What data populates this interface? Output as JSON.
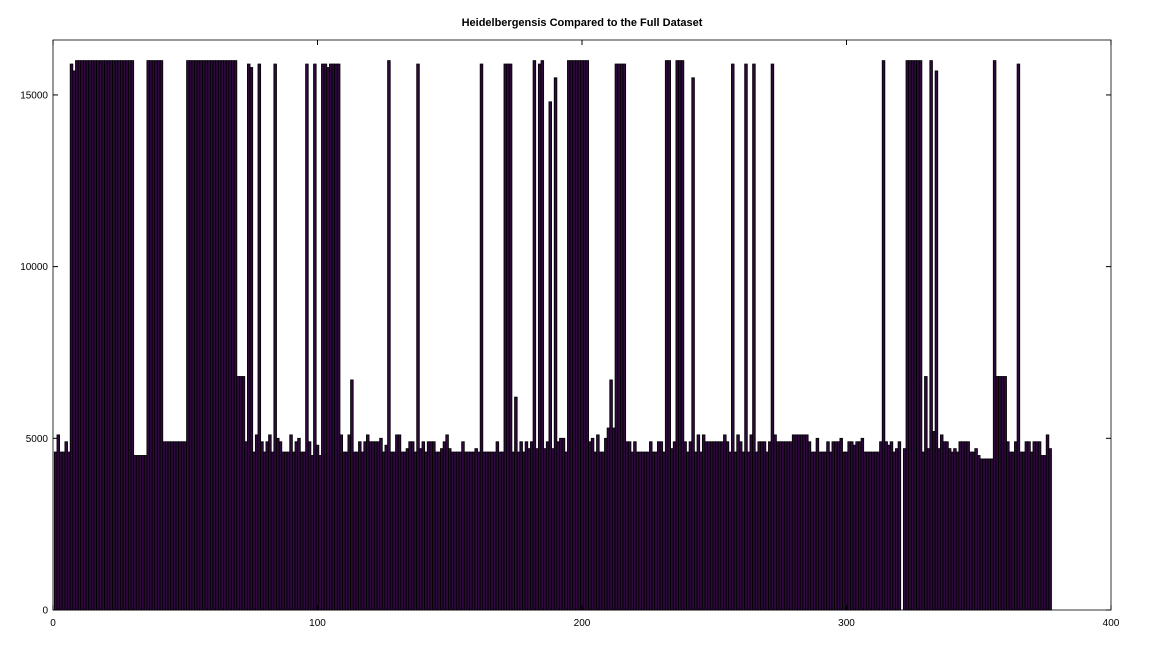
{
  "chart_data": {
    "type": "bar",
    "title": "Heidelbergensis Compared to the Full Dataset",
    "color": "#2e0a3c",
    "edgecolor": "#000000",
    "xlim": [
      0,
      400
    ],
    "xticks": [
      0,
      100,
      200,
      300,
      400
    ],
    "ylim": [
      0,
      16600
    ],
    "yticks": [
      0,
      5000,
      10000,
      15000
    ],
    "x": [
      1,
      2,
      3,
      4,
      5,
      6,
      7,
      8,
      9,
      10,
      11,
      12,
      13,
      14,
      15,
      16,
      17,
      18,
      19,
      20,
      21,
      22,
      23,
      24,
      25,
      26,
      27,
      28,
      29,
      30,
      31,
      32,
      33,
      34,
      35,
      36,
      37,
      38,
      39,
      40,
      41,
      42,
      43,
      44,
      45,
      46,
      47,
      48,
      49,
      50,
      51,
      52,
      53,
      54,
      55,
      56,
      57,
      58,
      59,
      60,
      61,
      62,
      63,
      64,
      65,
      66,
      67,
      68,
      69,
      70,
      71,
      72,
      73,
      74,
      75,
      76,
      77,
      78,
      79,
      80,
      81,
      82,
      83,
      84,
      85,
      86,
      87,
      88,
      89,
      90,
      91,
      92,
      93,
      94,
      95,
      96,
      97,
      98,
      99,
      100,
      101,
      102,
      103,
      104,
      105,
      106,
      107,
      108,
      109,
      110,
      111,
      112,
      113,
      114,
      115,
      116,
      117,
      118,
      119,
      120,
      121,
      122,
      123,
      124,
      125,
      126,
      127,
      128,
      129,
      130,
      131,
      132,
      133,
      134,
      135,
      136,
      137,
      138,
      139,
      140,
      141,
      142,
      143,
      144,
      145,
      146,
      147,
      148,
      149,
      150,
      151,
      152,
      153,
      154,
      155,
      156,
      157,
      158,
      159,
      160,
      161,
      162,
      163,
      164,
      165,
      166,
      167,
      168,
      169,
      170,
      171,
      172,
      173,
      174,
      175,
      176,
      177,
      178,
      179,
      180,
      181,
      182,
      183,
      184,
      185,
      186,
      187,
      188,
      189,
      190,
      191,
      192,
      193,
      194,
      195,
      196,
      197,
      198,
      199,
      200,
      201,
      202,
      203,
      204,
      205,
      206,
      207,
      208,
      209,
      210,
      211,
      212,
      213,
      214,
      215,
      216,
      217,
      218,
      219,
      220,
      221,
      222,
      223,
      224,
      225,
      226,
      227,
      228,
      229,
      230,
      231,
      232,
      233,
      234,
      235,
      236,
      237,
      238,
      239,
      240,
      241,
      242,
      243,
      244,
      245,
      246,
      247,
      248,
      249,
      250,
      251,
      252,
      253,
      254,
      255,
      256,
      257,
      258,
      259,
      260,
      261,
      262,
      263,
      264,
      265,
      266,
      267,
      268,
      269,
      270,
      271,
      272,
      273,
      274,
      275,
      276,
      277,
      278,
      279,
      280,
      281,
      282,
      283,
      284,
      285,
      286,
      287,
      288,
      289,
      290,
      291,
      292,
      293,
      294,
      295,
      296,
      297,
      298,
      299,
      300,
      301,
      302,
      303,
      304,
      305,
      306,
      307,
      308,
      309,
      310,
      311,
      312,
      313,
      314,
      315,
      316,
      317,
      318,
      319,
      320,
      321,
      322,
      323,
      324,
      325,
      326,
      327,
      328,
      329,
      330,
      331,
      332,
      333,
      334,
      335,
      336,
      337,
      338,
      339,
      340,
      341,
      342,
      343,
      344,
      345,
      346,
      347,
      348,
      349,
      350,
      351,
      352,
      353,
      354,
      355,
      356,
      357,
      358,
      359,
      360,
      361,
      362,
      363,
      364,
      365,
      366,
      367,
      368,
      369,
      370,
      371,
      372,
      373,
      374,
      375,
      376,
      377
    ],
    "values": [
      4600,
      5100,
      4600,
      4600,
      4900,
      4600,
      15900,
      15700,
      16000,
      16000,
      16000,
      16000,
      16000,
      16000,
      16000,
      16000,
      16000,
      16000,
      16000,
      16000,
      16000,
      16000,
      16000,
      16000,
      16000,
      16000,
      16000,
      16000,
      16000,
      16000,
      4500,
      4500,
      4500,
      4500,
      4500,
      16000,
      16000,
      16000,
      16000,
      16000,
      16000,
      4900,
      4900,
      4900,
      4900,
      4900,
      4900,
      4900,
      4900,
      4900,
      16000,
      16000,
      16000,
      16000,
      16000,
      16000,
      16000,
      16000,
      16000,
      16000,
      16000,
      16000,
      16000,
      16000,
      16000,
      16000,
      16000,
      16000,
      16000,
      6800,
      6800,
      6800,
      4900,
      15900,
      15800,
      4600,
      5100,
      15900,
      4900,
      4600,
      4900,
      5100,
      4600,
      15900,
      5000,
      4900,
      4600,
      4600,
      4600,
      5100,
      4600,
      4900,
      5000,
      4600,
      4600,
      15900,
      4900,
      4500,
      15900,
      4800,
      4500,
      15900,
      15900,
      15800,
      15900,
      15900,
      15900,
      15900,
      5100,
      4600,
      4600,
      5100,
      6700,
      4600,
      4600,
      4900,
      4600,
      4900,
      5100,
      4900,
      4900,
      4900,
      4900,
      5000,
      4600,
      4800,
      16000,
      4600,
      4600,
      5100,
      5100,
      4600,
      4600,
      4700,
      4900,
      4900,
      4600,
      15900,
      4700,
      4900,
      4600,
      4900,
      4900,
      4900,
      4600,
      4600,
      4700,
      4900,
      5100,
      4700,
      4600,
      4600,
      4600,
      4600,
      4900,
      4600,
      4600,
      4600,
      4600,
      4700,
      4600,
      15900,
      4600,
      4600,
      4600,
      4600,
      4600,
      4900,
      4600,
      4600,
      15900,
      15900,
      15900,
      4600,
      6200,
      4600,
      4900,
      4600,
      4900,
      4700,
      4900,
      16000,
      4700,
      15900,
      16000,
      4700,
      4900,
      14800,
      4700,
      15500,
      4900,
      5000,
      5000,
      4600,
      16000,
      16000,
      16000,
      16000,
      16000,
      16000,
      16000,
      16000,
      4900,
      5000,
      4600,
      5100,
      4600,
      4600,
      5000,
      5300,
      6700,
      5300,
      15900,
      15900,
      15900,
      15900,
      4900,
      4900,
      4600,
      4900,
      4600,
      4600,
      4600,
      4600,
      4600,
      4900,
      4600,
      4600,
      4900,
      4900,
      4600,
      16000,
      16000,
      4700,
      4900,
      16000,
      16000,
      16000,
      4900,
      4600,
      4900,
      15500,
      4600,
      5100,
      4600,
      5100,
      4900,
      4900,
      4900,
      4900,
      4900,
      4900,
      4900,
      5100,
      4900,
      4600,
      15900,
      4600,
      5100,
      4900,
      4600,
      15900,
      4600,
      5100,
      15900,
      4600,
      4900,
      4900,
      4900,
      4600,
      4900,
      15900,
      5100,
      4900,
      4900,
      4900,
      4900,
      4900,
      4900,
      5100,
      5100,
      5100,
      5100,
      5100,
      5100,
      4900,
      4600,
      4600,
      5000,
      4600,
      4600,
      4600,
      4900,
      4600,
      4900,
      4900,
      4900,
      5000,
      4600,
      4600,
      4900,
      4900,
      4800,
      4900,
      4900,
      5000,
      4600,
      4600,
      4600,
      4600,
      4600,
      4600,
      4900,
      16000,
      4900,
      4800,
      4900,
      4600,
      4700,
      4900,
      0,
      4700,
      16000,
      16000,
      16000,
      16000,
      16000,
      16000,
      4600,
      6800,
      4700,
      16000,
      5200,
      15700,
      4700,
      5100,
      4900,
      4900,
      4700,
      4600,
      4700,
      4600,
      4900,
      4900,
      4900,
      4900,
      4600,
      4600,
      4700,
      4500,
      4400,
      4400,
      4400,
      4400,
      4400,
      16000,
      6800,
      6800,
      6800,
      6800,
      4900,
      4600,
      4600,
      4900,
      15900,
      4600,
      4600,
      4900,
      4900,
      4600,
      4900,
      4900,
      4900,
      4500,
      4500,
      5100,
      4700
    ]
  }
}
